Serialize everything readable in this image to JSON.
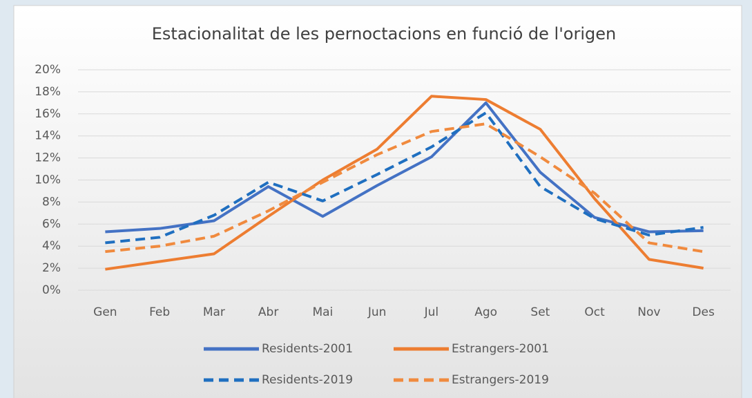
{
  "chart_data": {
    "type": "line",
    "title": "Estacionalitat de les pernoctacions en funció de l'origen",
    "categories": [
      "Gen",
      "Feb",
      "Mar",
      "Abr",
      "Mai",
      "Jun",
      "Jul",
      "Ago",
      "Set",
      "Oct",
      "Nov",
      "Des"
    ],
    "series": [
      {
        "name": "Residents-2001",
        "color": "#4472c4",
        "style": "solid",
        "values": [
          5.3,
          5.6,
          6.3,
          9.4,
          6.7,
          9.5,
          12.1,
          17.0,
          10.7,
          6.6,
          5.3,
          5.4
        ]
      },
      {
        "name": "Estrangers-2001",
        "color": "#ed7d31",
        "style": "solid",
        "values": [
          1.9,
          2.6,
          3.3,
          6.7,
          10.0,
          12.8,
          17.6,
          17.3,
          14.6,
          8.3,
          2.8,
          2.0
        ]
      },
      {
        "name": "Residents-2019",
        "color": "#1f6fc0",
        "style": "dashed",
        "values": [
          4.3,
          4.8,
          6.8,
          9.8,
          8.1,
          10.5,
          13.0,
          16.1,
          9.4,
          6.5,
          5.0,
          5.7
        ]
      },
      {
        "name": "Estrangers-2019",
        "color": "#f08a3e",
        "style": "dashed",
        "values": [
          3.5,
          4.0,
          4.9,
          7.2,
          9.8,
          12.3,
          14.4,
          15.1,
          12.1,
          8.8,
          4.3,
          3.5
        ]
      }
    ],
    "ylim": [
      0,
      20
    ],
    "yticks": [
      {
        "value": 0,
        "label": "0%"
      },
      {
        "value": 2,
        "label": "2%"
      },
      {
        "value": 4,
        "label": "4%"
      },
      {
        "value": 6,
        "label": "6%"
      },
      {
        "value": 8,
        "label": "8%"
      },
      {
        "value": 10,
        "label": "10%"
      },
      {
        "value": 12,
        "label": "12%"
      },
      {
        "value": 14,
        "label": "14%"
      },
      {
        "value": 16,
        "label": "16%"
      },
      {
        "value": 18,
        "label": "18%"
      },
      {
        "value": 20,
        "label": "20%"
      }
    ],
    "grid": true,
    "legend": "bottom"
  }
}
